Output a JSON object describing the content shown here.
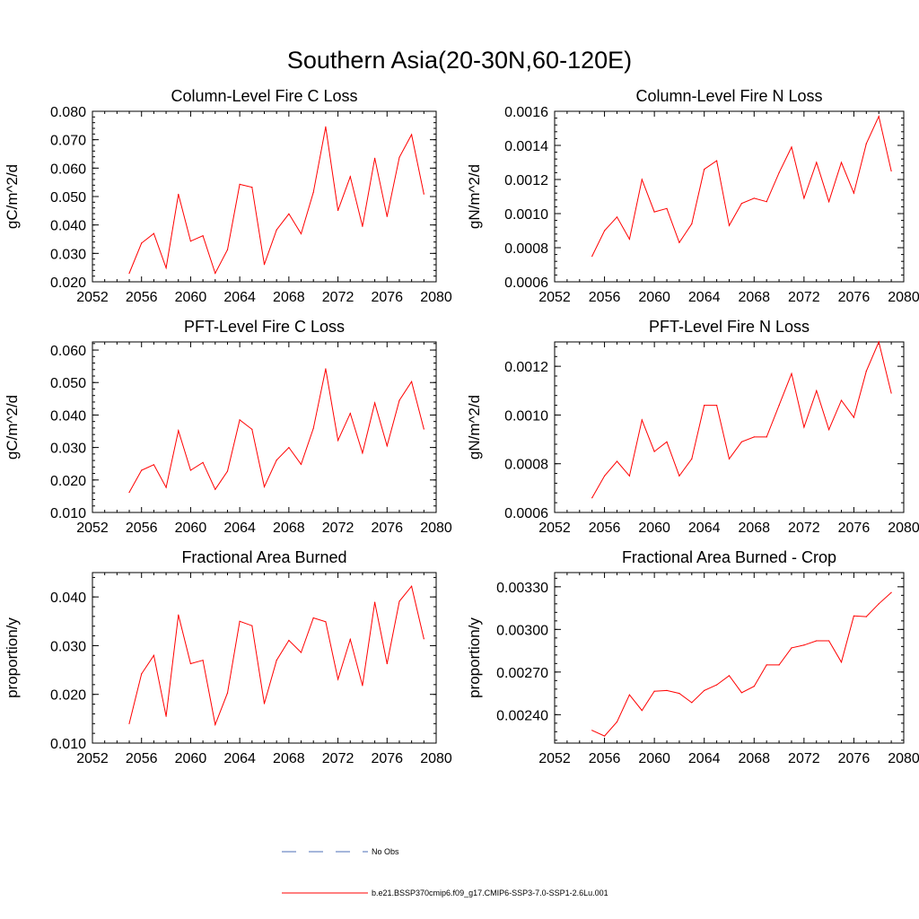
{
  "figure": {
    "title": "Southern Asia(20-30N,60-120E)",
    "line_color": "#ff0000",
    "obs_color": "#4b6cb7"
  },
  "legend": {
    "obs_label": "No Obs",
    "model_label": "b.e21.BSSP370cmip6.f09_g17.CMIP6-SSP3-7.0-SSP1-2.6Lu.001"
  },
  "chart_data": [
    {
      "type": "line",
      "title": "Column-Level Fire C Loss",
      "xlabel": "",
      "ylabel": "gC/m^2/d",
      "xlim": [
        2052,
        2080
      ],
      "ylim": [
        0.02,
        0.08
      ],
      "x_ticks": [
        "2052",
        "2056",
        "2060",
        "2064",
        "2068",
        "2072",
        "2076",
        "2080"
      ],
      "y_ticks": [
        "0.020",
        "0.030",
        "0.040",
        "0.050",
        "0.060",
        "0.070",
        "0.080"
      ],
      "x": [
        2055,
        2056,
        2057,
        2058,
        2059,
        2060,
        2061,
        2062,
        2063,
        2064,
        2065,
        2066,
        2067,
        2068,
        2069,
        2070,
        2071,
        2072,
        2073,
        2074,
        2075,
        2076,
        2077,
        2078,
        2079
      ],
      "series": [
        {
          "values": [
            0.023,
            0.0336,
            0.037,
            0.0249,
            0.0508,
            0.0343,
            0.0362,
            0.023,
            0.0313,
            0.0543,
            0.0533,
            0.0261,
            0.0383,
            0.0439,
            0.0369,
            0.0515,
            0.0745,
            0.0451,
            0.057,
            0.0395,
            0.0635,
            0.043,
            0.0638,
            0.0718,
            0.0509
          ]
        }
      ]
    },
    {
      "type": "line",
      "title": "Column-Level Fire N Loss",
      "xlabel": "",
      "ylabel": "gN/m^2/d",
      "xlim": [
        2052,
        2080
      ],
      "ylim": [
        0.0006,
        0.0016
      ],
      "x_ticks": [
        "2052",
        "2056",
        "2060",
        "2064",
        "2068",
        "2072",
        "2076",
        "2080"
      ],
      "y_ticks": [
        "0.0006",
        "0.0008",
        "0.0010",
        "0.0012",
        "0.0014",
        "0.0016"
      ],
      "x": [
        2055,
        2056,
        2057,
        2058,
        2059,
        2060,
        2061,
        2062,
        2063,
        2064,
        2065,
        2066,
        2067,
        2068,
        2069,
        2070,
        2071,
        2072,
        2073,
        2074,
        2075,
        2076,
        2077,
        2078,
        2079
      ],
      "series": [
        {
          "values": [
            0.00075,
            0.0009,
            0.00098,
            0.00085,
            0.0012,
            0.00101,
            0.00103,
            0.00083,
            0.00094,
            0.00126,
            0.00131,
            0.00093,
            0.00106,
            0.00109,
            0.00107,
            0.00124,
            0.00139,
            0.00109,
            0.0013,
            0.00107,
            0.0013,
            0.00112,
            0.00141,
            0.00157,
            0.00125
          ]
        }
      ]
    },
    {
      "type": "line",
      "title": "PFT-Level Fire C Loss",
      "xlabel": "",
      "ylabel": "gC/m^2/d",
      "xlim": [
        2052,
        2080
      ],
      "ylim": [
        0.01,
        0.0625
      ],
      "x_ticks": [
        "2052",
        "2056",
        "2060",
        "2064",
        "2068",
        "2072",
        "2076",
        "2080"
      ],
      "y_ticks": [
        "0.010",
        "0.020",
        "0.030",
        "0.040",
        "0.050",
        "0.060"
      ],
      "x": [
        2055,
        2056,
        2057,
        2058,
        2059,
        2060,
        2061,
        2062,
        2063,
        2064,
        2065,
        2066,
        2067,
        2068,
        2069,
        2070,
        2071,
        2072,
        2073,
        2074,
        2075,
        2076,
        2077,
        2078,
        2079
      ],
      "series": [
        {
          "values": [
            0.0162,
            0.023,
            0.0247,
            0.0177,
            0.0352,
            0.023,
            0.0254,
            0.0171,
            0.0227,
            0.0385,
            0.0356,
            0.0179,
            0.0261,
            0.03,
            0.0248,
            0.0359,
            0.0542,
            0.0322,
            0.0405,
            0.0283,
            0.0437,
            0.0305,
            0.0445,
            0.0503,
            0.0357
          ]
        }
      ]
    },
    {
      "type": "line",
      "title": "PFT-Level Fire N Loss",
      "xlabel": "",
      "ylabel": "gN/m^2/d",
      "xlim": [
        2052,
        2080
      ],
      "ylim": [
        0.0006,
        0.0013
      ],
      "x_ticks": [
        "2052",
        "2056",
        "2060",
        "2064",
        "2068",
        "2072",
        "2076",
        "2080"
      ],
      "y_ticks": [
        "0.0006",
        "0.0008",
        "0.0010",
        "0.0012"
      ],
      "x": [
        2055,
        2056,
        2057,
        2058,
        2059,
        2060,
        2061,
        2062,
        2063,
        2064,
        2065,
        2066,
        2067,
        2068,
        2069,
        2070,
        2071,
        2072,
        2073,
        2074,
        2075,
        2076,
        2077,
        2078,
        2079
      ],
      "series": [
        {
          "values": [
            0.00066,
            0.00075,
            0.00081,
            0.00075,
            0.00098,
            0.00085,
            0.00089,
            0.00075,
            0.00082,
            0.00104,
            0.00104,
            0.00082,
            0.00089,
            0.00091,
            0.00091,
            0.00104,
            0.00117,
            0.00095,
            0.0011,
            0.00094,
            0.00106,
            0.00099,
            0.00118,
            0.0013,
            0.00109
          ]
        }
      ]
    },
    {
      "type": "line",
      "title": "Fractional Area Burned",
      "xlabel": "",
      "ylabel": "proportion/y",
      "xlim": [
        2052,
        2080
      ],
      "ylim": [
        0.01,
        0.045
      ],
      "x_ticks": [
        "2052",
        "2056",
        "2060",
        "2064",
        "2068",
        "2072",
        "2076",
        "2080"
      ],
      "y_ticks": [
        "0.010",
        "0.020",
        "0.030",
        "0.040"
      ],
      "x": [
        2055,
        2056,
        2057,
        2058,
        2059,
        2060,
        2061,
        2062,
        2063,
        2064,
        2065,
        2066,
        2067,
        2068,
        2069,
        2070,
        2071,
        2072,
        2073,
        2074,
        2075,
        2076,
        2077,
        2078,
        2079
      ],
      "series": [
        {
          "values": [
            0.014,
            0.0242,
            0.028,
            0.0155,
            0.0363,
            0.0263,
            0.027,
            0.0138,
            0.0203,
            0.035,
            0.0341,
            0.0181,
            0.027,
            0.0311,
            0.0286,
            0.0357,
            0.0349,
            0.0231,
            0.0313,
            0.0218,
            0.0389,
            0.0263,
            0.0391,
            0.0422,
            0.0314
          ]
        }
      ]
    },
    {
      "type": "line",
      "title": "Fractional Area Burned - Crop",
      "xlabel": "",
      "ylabel": "proportion/y",
      "xlim": [
        2052,
        2080
      ],
      "ylim": [
        0.0022,
        0.0034
      ],
      "x_ticks": [
        "2052",
        "2056",
        "2060",
        "2064",
        "2068",
        "2072",
        "2076",
        "2080"
      ],
      "y_ticks": [
        "0.00240",
        "0.00270",
        "0.00300",
        "0.00330"
      ],
      "x": [
        2055,
        2056,
        2057,
        2058,
        2059,
        2060,
        2061,
        2062,
        2063,
        2064,
        2065,
        2066,
        2067,
        2068,
        2069,
        2070,
        2071,
        2072,
        2073,
        2074,
        2075,
        2076,
        2077,
        2078,
        2079
      ],
      "series": [
        {
          "values": [
            0.00229,
            0.00225,
            0.00235,
            0.00254,
            0.00243,
            0.002565,
            0.00257,
            0.00255,
            0.002485,
            0.00257,
            0.00261,
            0.002675,
            0.002555,
            0.0026,
            0.00275,
            0.00275,
            0.00287,
            0.00289,
            0.00292,
            0.00292,
            0.00277,
            0.003095,
            0.00309,
            0.00318,
            0.00326
          ]
        }
      ]
    }
  ]
}
